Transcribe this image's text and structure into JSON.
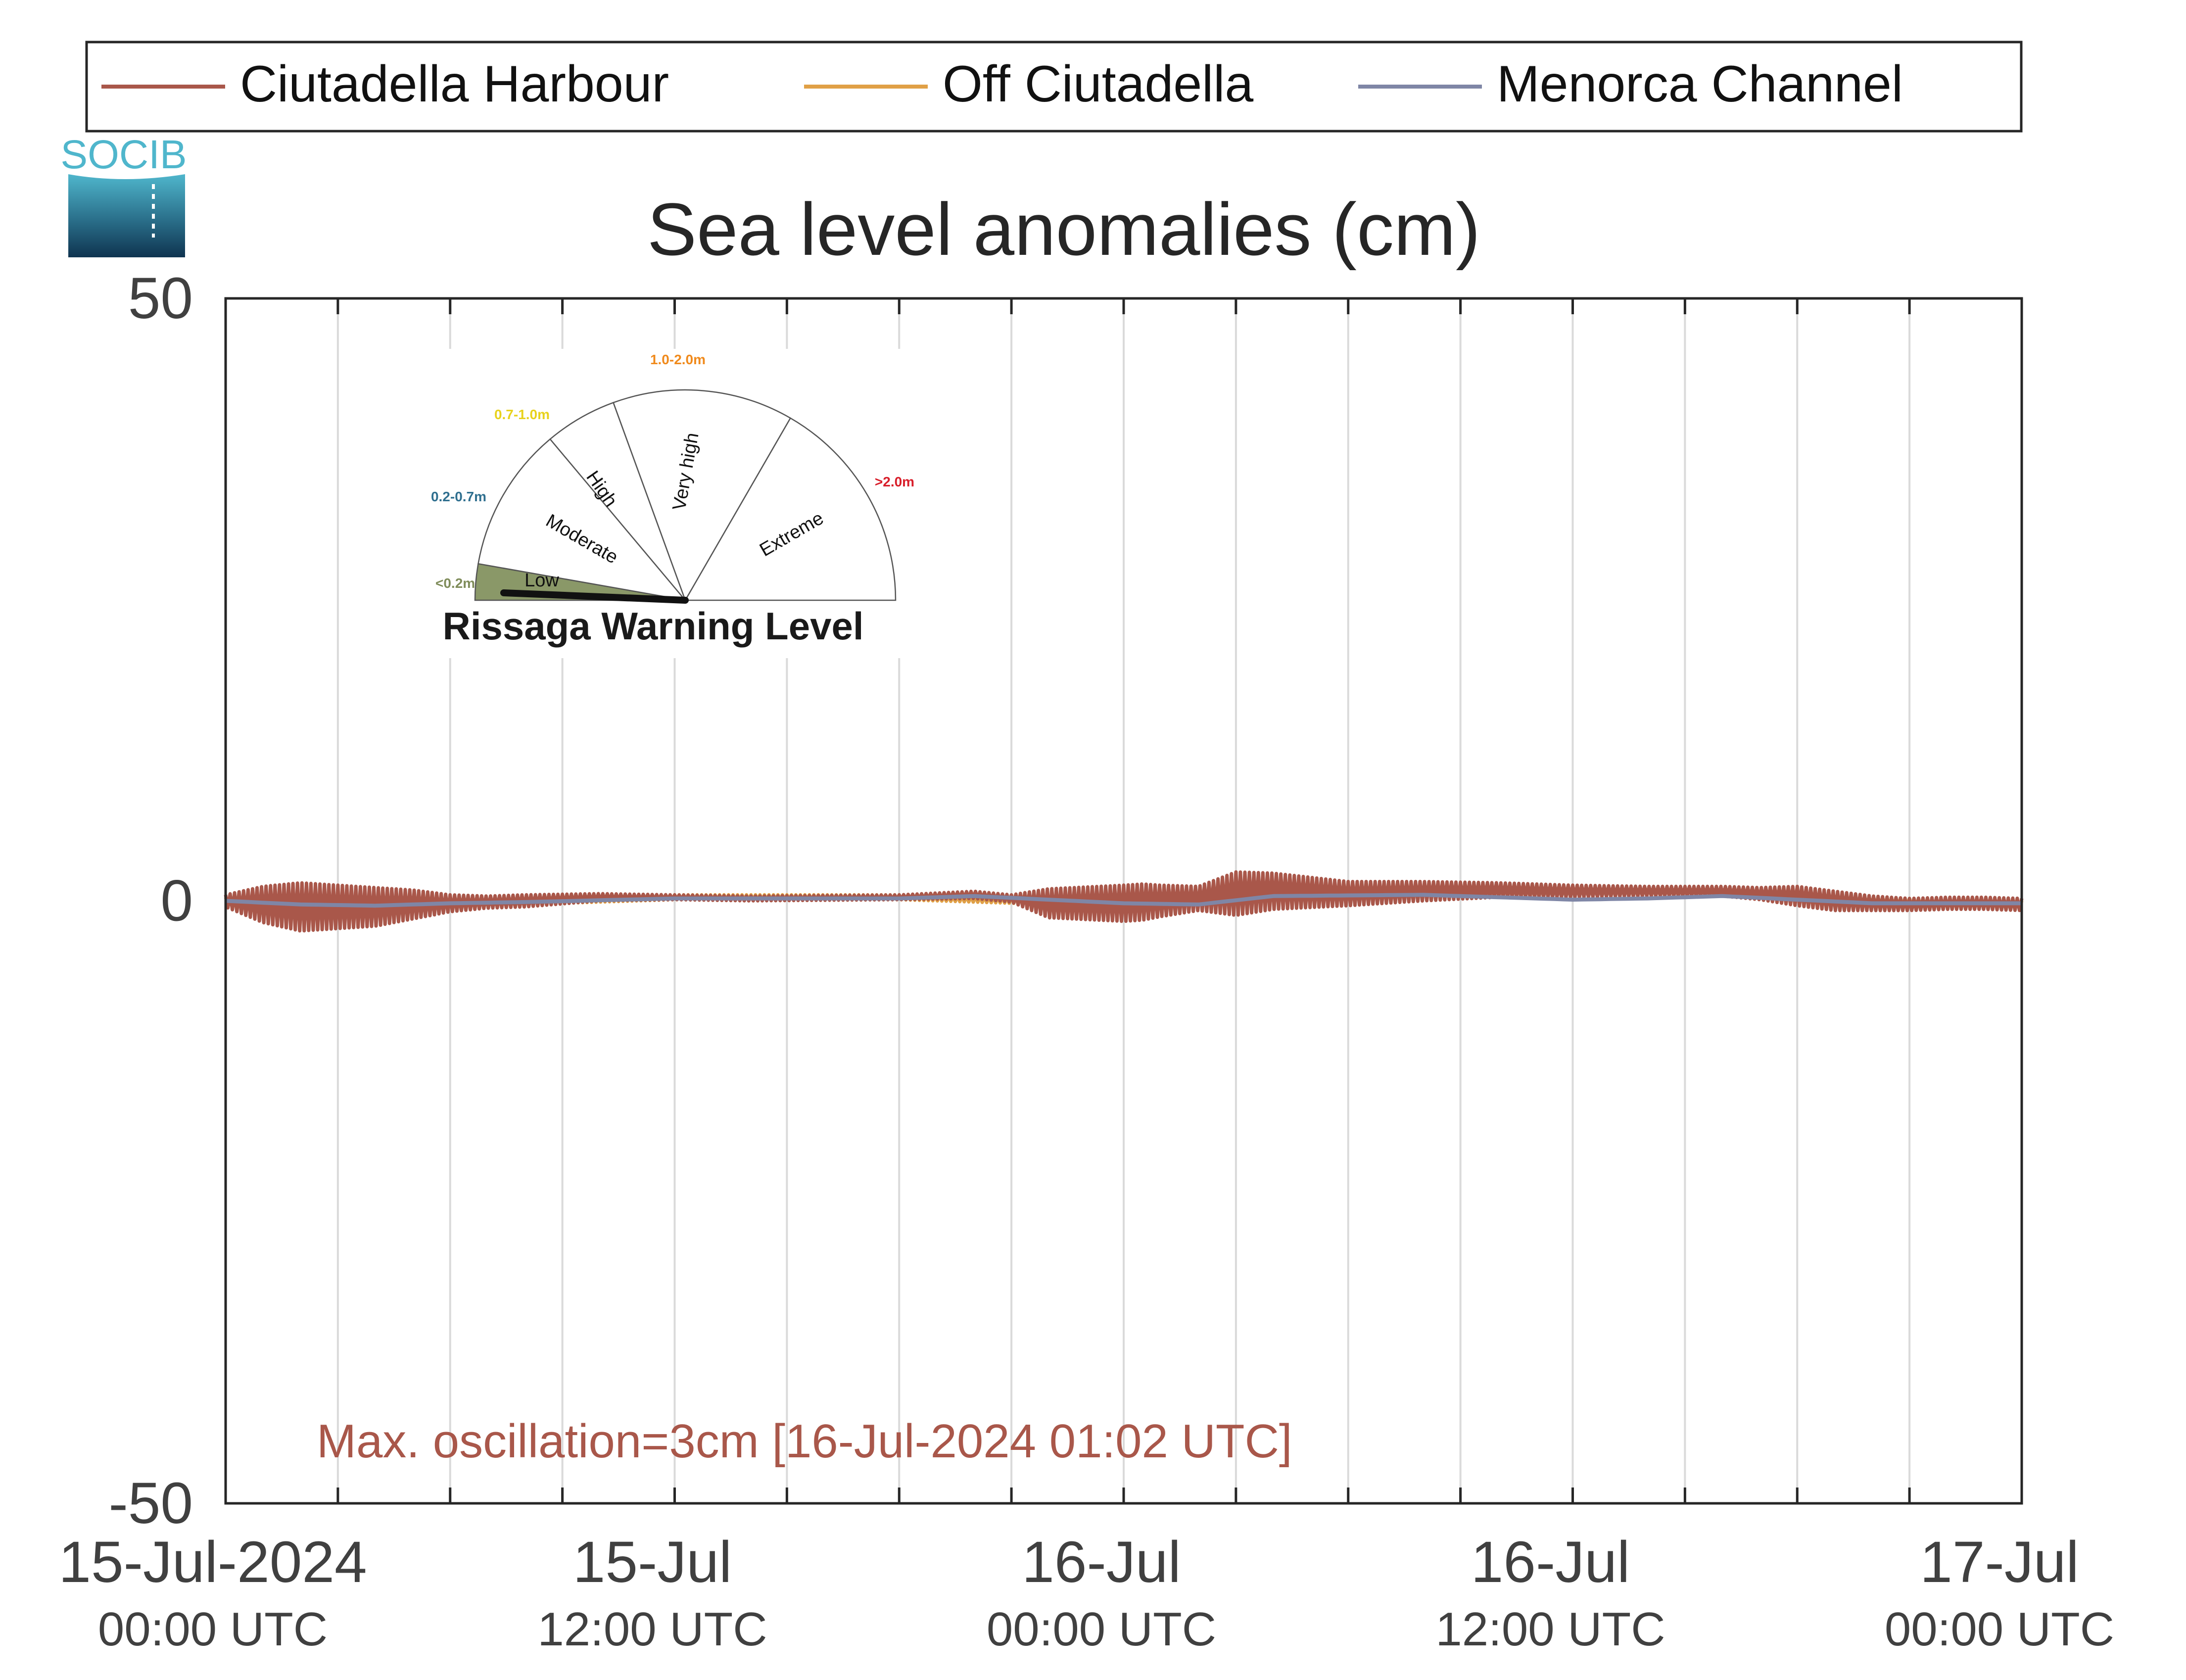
{
  "logo": {
    "text": "SOCIB"
  },
  "legend": {
    "placement": "top",
    "items": [
      {
        "label": "Ciutadella Harbour",
        "color": "#A9574A"
      },
      {
        "label": "Off Ciutadella",
        "color": "#E0A046"
      },
      {
        "label": "Menorca Channel",
        "color": "#7F86A6"
      }
    ]
  },
  "gauge": {
    "title": "Rissaga Warning Level",
    "current_level": "Low",
    "sectors": [
      {
        "name": "Low",
        "range": "<0.2m",
        "range_color": "#7F8C5A",
        "fill": "#8A9868",
        "active": true
      },
      {
        "name": "Moderate",
        "range": "0.2-0.7m",
        "range_color": "#2F6F8F",
        "fill": "#ffffff",
        "active": false
      },
      {
        "name": "High",
        "range": "0.7-1.0m",
        "range_color": "#E8D21C",
        "fill": "#ffffff",
        "active": false
      },
      {
        "name": "Very high",
        "range": "1.0-2.0m",
        "range_color": "#F08A1C",
        "fill": "#ffffff",
        "active": false
      },
      {
        "name": "Extreme",
        "range": ">2.0m",
        "range_color": "#D81E2A",
        "fill": "#ffffff",
        "active": false
      }
    ]
  },
  "annotation": {
    "text": "Max. oscillation=3cm [16-Jul-2024 01:02 UTC]",
    "color": "#A9574A"
  },
  "chart_data": {
    "type": "line",
    "title": "Sea level anomalies (cm)",
    "xlabel": "",
    "ylabel": "",
    "x_unit": "hours since 15-Jul-2024 00:00 UTC",
    "xlim": [
      0,
      48
    ],
    "ylim": [
      -50,
      50
    ],
    "yticks": [
      {
        "value": 50,
        "label": "50"
      },
      {
        "value": 0,
        "label": "0"
      },
      {
        "value": -50,
        "label": "-50"
      }
    ],
    "xticks": [
      {
        "value": 0,
        "date": "15-Jul-2024",
        "time": "00:00 UTC"
      },
      {
        "value": 12,
        "date": "15-Jul",
        "time": "12:00 UTC"
      },
      {
        "value": 24,
        "date": "16-Jul",
        "time": "00:00 UTC"
      },
      {
        "value": 36,
        "date": "16-Jul",
        "time": "12:00 UTC"
      },
      {
        "value": 48,
        "date": "17-Jul",
        "time": "00:00 UTC"
      }
    ],
    "minor_ticks": [
      3,
      6,
      9,
      15,
      18,
      21,
      27,
      30,
      33,
      39,
      42,
      45
    ],
    "grid": true,
    "series": [
      {
        "name": "Ciutadella Harbour",
        "color": "#A9574A",
        "oscillating": true,
        "x": [
          0,
          1,
          2,
          3,
          4,
          5,
          6,
          7,
          8,
          10,
          12,
          14,
          18,
          20,
          21,
          22,
          24,
          24.5,
          25,
          26,
          27,
          28,
          30,
          32,
          34,
          36,
          38,
          40,
          41,
          42,
          43,
          44,
          45,
          46,
          47,
          48
        ],
        "mid": [
          0,
          -0.3,
          -0.5,
          -0.5,
          -0.5,
          -0.3,
          -0.2,
          -0.1,
          0,
          0.3,
          0.3,
          0.2,
          0.3,
          0.5,
          0.2,
          -0.2,
          -0.2,
          -0.1,
          0,
          0.2,
          0.6,
          0.8,
          0.6,
          0.8,
          0.9,
          0.8,
          0.8,
          0.8,
          0.6,
          0.4,
          0,
          -0.2,
          -0.3,
          -0.2,
          -0.2,
          -0.3
        ],
        "amplitude": [
          0.5,
          1.5,
          2.0,
          1.8,
          1.6,
          1.2,
          0.7,
          0.5,
          0.5,
          0.3,
          0.2,
          0.2,
          0.2,
          0.3,
          0.3,
          1.2,
          1.5,
          1.5,
          1.3,
          1.0,
          1.8,
          1.5,
          1.0,
          0.8,
          0.6,
          0.5,
          0.4,
          0.4,
          0.5,
          0.8,
          0.8,
          0.6,
          0.5,
          0.5,
          0.5,
          0.5
        ]
      },
      {
        "name": "Off Ciutadella",
        "color": "#E0A046",
        "oscillating": true,
        "x": [
          0,
          2,
          4,
          6,
          8,
          12,
          18,
          22,
          24,
          26,
          28,
          32,
          36,
          40,
          44,
          46,
          48
        ],
        "mid": [
          0,
          -0.3,
          -0.3,
          -0.1,
          0,
          0.3,
          0.3,
          0,
          0,
          0.3,
          0.6,
          0.8,
          0.8,
          0.8,
          0,
          -0.2,
          -0.3
        ],
        "amplitude": [
          0.3,
          0.4,
          0.4,
          0.3,
          0.3,
          0.2,
          0.2,
          0.3,
          0.3,
          0.3,
          0.4,
          0.3,
          0.3,
          0.3,
          0.3,
          0.3,
          0.3
        ]
      },
      {
        "name": "Menorca Channel",
        "color": "#7F86A6",
        "oscillating": false,
        "x": [
          0,
          2,
          4,
          6,
          8,
          12,
          18,
          20,
          22,
          24,
          26,
          28,
          32,
          36,
          38,
          40,
          42,
          44,
          46,
          48
        ],
        "mid": [
          0,
          -0.3,
          -0.4,
          -0.2,
          -0.1,
          0.2,
          0.2,
          0.4,
          0.1,
          -0.2,
          -0.3,
          0.4,
          0.5,
          0.1,
          0.2,
          0.4,
          0.1,
          -0.2,
          -0.2,
          -0.2
        ],
        "amplitude": [
          0,
          0,
          0,
          0,
          0,
          0,
          0,
          0,
          0,
          0,
          0,
          0,
          0,
          0,
          0,
          0,
          0,
          0,
          0,
          0
        ]
      }
    ]
  }
}
